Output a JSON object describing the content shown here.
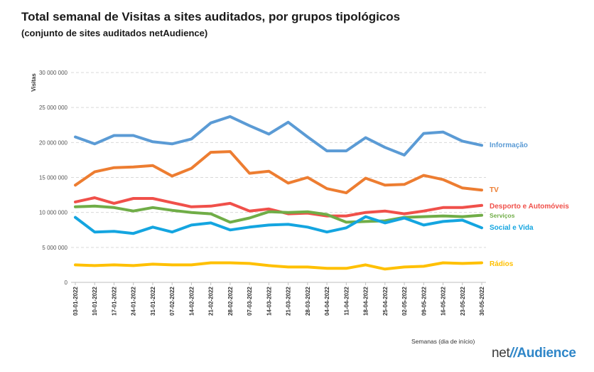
{
  "header": {
    "title": "Total semanal de Visitas a sites auditados, por grupos tipológicos",
    "subtitle": "(conjunto de sites auditados netAudience)"
  },
  "brand": {
    "prefix": "net",
    "slash": "//",
    "name": "Audience"
  },
  "chart_data": {
    "type": "line",
    "title": "Total semanal de Visitas a sites auditados, por grupos tipológicos",
    "subtitle": "(conjunto de sites auditados netAudience)",
    "xlabel": "Semanas  (dia de início)",
    "ylabel": "Visitas",
    "ylim": [
      0,
      30000000
    ],
    "yticks": [
      0,
      5000000,
      10000000,
      15000000,
      20000000,
      25000000,
      30000000
    ],
    "ytick_labels": [
      "0",
      "5 000 000",
      "10 000 000",
      "15 000 000",
      "20 000 000",
      "25 000 000",
      "30 000 000"
    ],
    "grid": true,
    "categories": [
      "03-01-2022",
      "10-01-2022",
      "17-01-2022",
      "24-01-2022",
      "31-01-2022",
      "07-02-2022",
      "14-02-2022",
      "21-02-2022",
      "28-02-2022",
      "07-03-2022",
      "14-03-2022",
      "21-03-2022",
      "28-03-2022",
      "04-04-2022",
      "11-04-2022",
      "18-04-2022",
      "25-04-2022",
      "02-05-2022",
      "09-05-2022",
      "16-05-2022",
      "23-05-2022",
      "30-05-2022"
    ],
    "series": [
      {
        "name": "Informação",
        "color": "#5b9bd5",
        "values": [
          20800000,
          19800000,
          21000000,
          21000000,
          20100000,
          19800000,
          20500000,
          22800000,
          23700000,
          22400000,
          21200000,
          22900000,
          20800000,
          18800000,
          18800000,
          20700000,
          19300000,
          18200000,
          21300000,
          21500000,
          20200000,
          19600000
        ]
      },
      {
        "name": "TV",
        "color": "#ed7d31",
        "values": [
          13900000,
          15800000,
          16400000,
          16500000,
          16700000,
          15200000,
          16300000,
          18600000,
          18700000,
          15600000,
          15900000,
          14200000,
          15000000,
          13400000,
          12800000,
          14900000,
          13900000,
          14000000,
          15300000,
          14700000,
          13500000,
          13200000
        ]
      },
      {
        "name": "Desporto e Automóveis",
        "color": "#f0504a",
        "values": [
          11500000,
          12100000,
          11300000,
          12000000,
          12000000,
          11400000,
          10800000,
          10900000,
          11300000,
          10200000,
          10500000,
          9800000,
          9900000,
          9500000,
          9500000,
          10000000,
          10200000,
          9800000,
          10200000,
          10700000,
          10700000,
          11000000
        ]
      },
      {
        "name": "Serviços",
        "color": "#70ad47",
        "values": [
          10800000,
          10900000,
          10700000,
          10200000,
          10700000,
          10300000,
          10000000,
          9800000,
          8600000,
          9200000,
          10100000,
          10000000,
          10100000,
          9700000,
          8600000,
          8700000,
          8800000,
          9300000,
          9400000,
          9500000,
          9400000,
          9600000
        ]
      },
      {
        "name": "Social e Vida",
        "color": "#14a5e0",
        "values": [
          9300000,
          7200000,
          7300000,
          7000000,
          7900000,
          7200000,
          8200000,
          8500000,
          7500000,
          7900000,
          8200000,
          8300000,
          7900000,
          7200000,
          7800000,
          9400000,
          8500000,
          9200000,
          8200000,
          8700000,
          8900000,
          7800000
        ]
      },
      {
        "name": "Rádios",
        "color": "#ffc000",
        "values": [
          2500000,
          2400000,
          2500000,
          2400000,
          2600000,
          2500000,
          2500000,
          2800000,
          2800000,
          2700000,
          2400000,
          2200000,
          2200000,
          2000000,
          2000000,
          2500000,
          1900000,
          2200000,
          2300000,
          2800000,
          2700000,
          2800000
        ]
      }
    ]
  }
}
